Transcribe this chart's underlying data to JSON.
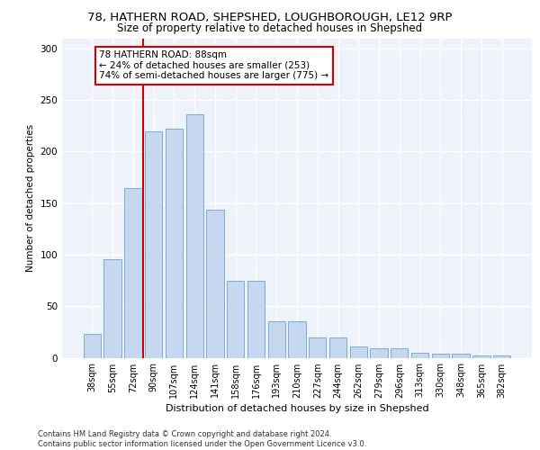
{
  "title1": "78, HATHERN ROAD, SHEPSHED, LOUGHBOROUGH, LE12 9RP",
  "title2": "Size of property relative to detached houses in Shepshed",
  "xlabel": "Distribution of detached houses by size in Shepshed",
  "ylabel": "Number of detached properties",
  "bar_labels": [
    "38sqm",
    "55sqm",
    "72sqm",
    "90sqm",
    "107sqm",
    "124sqm",
    "141sqm",
    "158sqm",
    "176sqm",
    "193sqm",
    "210sqm",
    "227sqm",
    "244sqm",
    "262sqm",
    "279sqm",
    "296sqm",
    "313sqm",
    "330sqm",
    "348sqm",
    "365sqm",
    "382sqm"
  ],
  "bar_values": [
    23,
    96,
    165,
    220,
    222,
    236,
    144,
    75,
    75,
    35,
    35,
    20,
    20,
    11,
    9,
    9,
    5,
    4,
    4,
    2,
    2
  ],
  "bar_color": "#c5d8ef",
  "bar_edge_color": "#7aadd4",
  "vline_x": 2.5,
  "vline_color": "#cc0000",
  "annotation_text": "78 HATHERN ROAD: 88sqm\n← 24% of detached houses are smaller (253)\n74% of semi-detached houses are larger (775) →",
  "annotation_box_color": "#ffffff",
  "annotation_box_edge": "#cc0000",
  "ylim": [
    0,
    310
  ],
  "yticks": [
    0,
    50,
    100,
    150,
    200,
    250,
    300
  ],
  "footer": "Contains HM Land Registry data © Crown copyright and database right 2024.\nContains public sector information licensed under the Open Government Licence v3.0.",
  "bg_color": "#eef2fb",
  "grid_color": "#ffffff",
  "title1_fontsize": 9.5,
  "title2_fontsize": 8.5,
  "xlabel_fontsize": 8,
  "ylabel_fontsize": 7.5,
  "tick_fontsize": 7,
  "annotation_fontsize": 7.5,
  "footer_fontsize": 6
}
